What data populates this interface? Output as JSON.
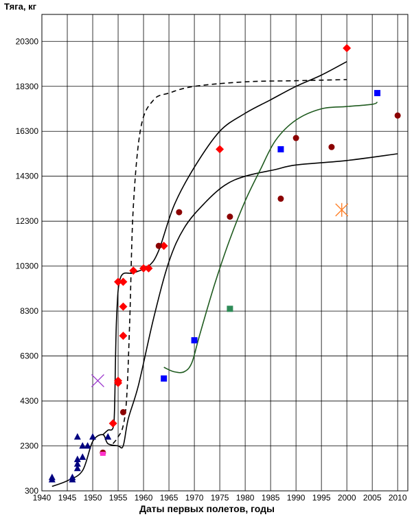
{
  "chart_data": {
    "type": "scatter",
    "title": "",
    "ylabel": "Тяга, кг",
    "xlabel": "Даты первых полетов, годы",
    "xlim": [
      1940,
      2012
    ],
    "ylim": [
      300,
      21500
    ],
    "grid": true,
    "xticks": [
      "1940",
      "1945",
      "1950",
      "1955",
      "1960",
      "1965",
      "1970",
      "1975",
      "1980",
      "1985",
      "1990",
      "1995",
      "2000",
      "2005",
      "2010"
    ],
    "yticks": [
      "300",
      "2300",
      "4300",
      "6300",
      "8300",
      "10300",
      "12300",
      "14300",
      "16300",
      "18300",
      "20300"
    ],
    "colors": {
      "red": "#ff0000",
      "darkred": "#8b0000",
      "navy": "#000080",
      "blue": "#0000ff",
      "green": "#2e8b57",
      "purple": "#9932cc",
      "orange": "#ff7f27",
      "magenta": "#ff33cc",
      "black": "#000000",
      "darkgreen": "#1e5a1e"
    },
    "series": [
      {
        "marker": "triangle",
        "color": "navy",
        "points": [
          [
            1942,
            900
          ],
          [
            1942,
            800
          ],
          [
            1946,
            800
          ],
          [
            1946,
            900
          ],
          [
            1947,
            1300
          ],
          [
            1947,
            1500
          ],
          [
            1947,
            1700
          ],
          [
            1947,
            2700
          ],
          [
            1948,
            1800
          ],
          [
            1948,
            2300
          ],
          [
            1949,
            2300
          ],
          [
            1950,
            2700
          ],
          [
            1953,
            2700
          ]
        ]
      },
      {
        "marker": "diamond",
        "color": "red",
        "points": [
          [
            1954,
            3300
          ],
          [
            1955,
            5200
          ],
          [
            1955,
            5100
          ],
          [
            1955,
            9600
          ],
          [
            1956,
            9600
          ],
          [
            1956,
            8500
          ],
          [
            1956,
            7200
          ],
          [
            1958,
            10100
          ],
          [
            1960,
            10200
          ],
          [
            1961,
            10200
          ],
          [
            1964,
            11200
          ],
          [
            1975,
            15500
          ],
          [
            2000,
            20000
          ]
        ]
      },
      {
        "marker": "circle",
        "color": "darkred",
        "points": [
          [
            1952,
            2000
          ],
          [
            1956,
            3800
          ],
          [
            1963,
            11200
          ],
          [
            1967,
            12700
          ],
          [
            1977,
            12500
          ],
          [
            1987,
            13300
          ],
          [
            1990,
            16000
          ],
          [
            1997,
            15600
          ],
          [
            2010,
            17000
          ]
        ]
      },
      {
        "marker": "square",
        "color": "blue",
        "points": [
          [
            1964,
            5300
          ],
          [
            1970,
            7000
          ],
          [
            1987,
            15500
          ],
          [
            2006,
            18000
          ]
        ]
      },
      {
        "marker": "square",
        "color": "green",
        "points": [
          [
            1977,
            8400
          ]
        ]
      },
      {
        "marker": "x",
        "color": "purple",
        "points": [
          [
            1951,
            5200
          ]
        ]
      },
      {
        "marker": "star",
        "color": "orange",
        "points": [
          [
            1999,
            12800
          ]
        ]
      },
      {
        "marker": "smallsquare",
        "color": "magenta",
        "points": [
          [
            1952,
            1950
          ]
        ]
      }
    ],
    "curves": [
      {
        "style": "dashed",
        "color": "black",
        "points": [
          [
            1954,
            2400
          ],
          [
            1955,
            2700
          ],
          [
            1956,
            3200
          ],
          [
            1956.7,
            4500
          ],
          [
            1957.3,
            8000
          ],
          [
            1958,
            13000
          ],
          [
            1959.5,
            16500
          ],
          [
            1962,
            17700
          ],
          [
            1965,
            18000
          ],
          [
            1970,
            18300
          ],
          [
            1980,
            18500
          ],
          [
            1990,
            18550
          ],
          [
            2000,
            18600
          ]
        ]
      },
      {
        "style": "solid",
        "color": "black",
        "points": [
          [
            1952,
            2800
          ],
          [
            1953,
            3000
          ],
          [
            1954,
            3100
          ],
          [
            1954.3,
            4000
          ],
          [
            1954.7,
            8000
          ],
          [
            1955.5,
            9800
          ],
          [
            1958,
            10000
          ],
          [
            1961,
            10300
          ],
          [
            1963,
            11000
          ],
          [
            1966,
            13000
          ],
          [
            1970,
            14700
          ],
          [
            1975,
            16300
          ],
          [
            1980,
            17100
          ],
          [
            1985,
            17700
          ],
          [
            1990,
            18300
          ],
          [
            1995,
            18800
          ],
          [
            2000,
            19400
          ]
        ]
      },
      {
        "style": "solid",
        "color": "black",
        "points": [
          [
            1942,
            500
          ],
          [
            1945,
            750
          ],
          [
            1948,
            1200
          ],
          [
            1950,
            2500
          ],
          [
            1952,
            2800
          ],
          [
            1953,
            2400
          ],
          [
            1955,
            2300
          ],
          [
            1956,
            2300
          ],
          [
            1957,
            3500
          ],
          [
            1959,
            5000
          ],
          [
            1962,
            8000
          ],
          [
            1965,
            10500
          ],
          [
            1968,
            12000
          ],
          [
            1972,
            13100
          ],
          [
            1976,
            13900
          ],
          [
            1980,
            14300
          ],
          [
            1986,
            14600
          ],
          [
            1990,
            14800
          ],
          [
            2000,
            15000
          ],
          [
            2010,
            15300
          ]
        ]
      },
      {
        "style": "solid",
        "color": "darkgreen",
        "points": [
          [
            1964,
            5800
          ],
          [
            1966,
            5600
          ],
          [
            1968,
            5600
          ],
          [
            1969.5,
            6000
          ],
          [
            1971,
            7200
          ],
          [
            1974,
            9500
          ],
          [
            1977,
            11500
          ],
          [
            1980,
            13200
          ],
          [
            1983,
            14600
          ],
          [
            1986,
            15900
          ],
          [
            1990,
            16800
          ],
          [
            1995,
            17300
          ],
          [
            2000,
            17400
          ],
          [
            2005,
            17500
          ],
          [
            2006,
            17600
          ]
        ]
      }
    ]
  }
}
